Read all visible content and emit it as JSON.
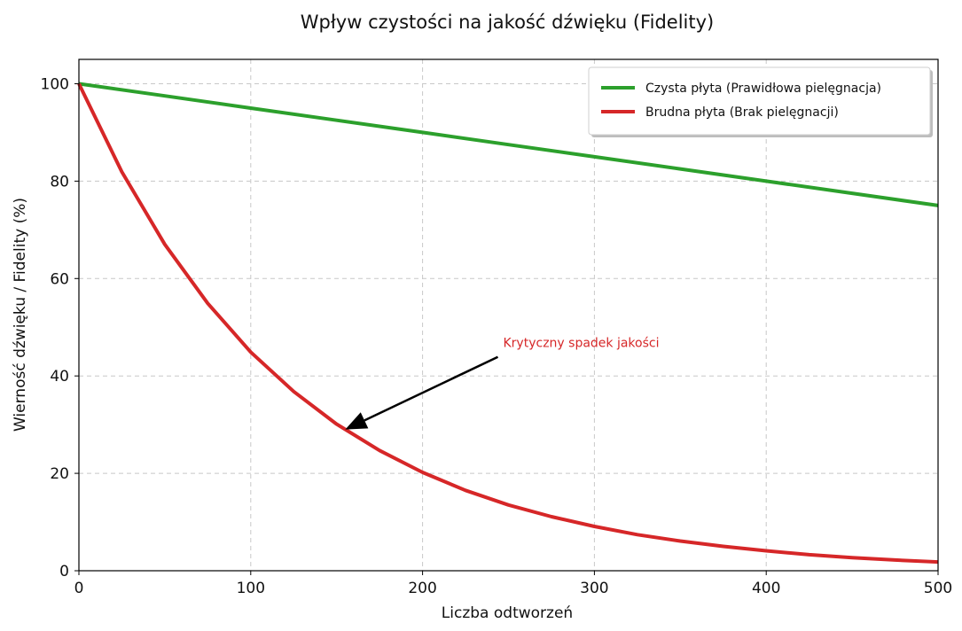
{
  "chart_data": {
    "type": "line",
    "title": "Wpływ czystości na jakość dźwięku (Fidelity)",
    "xlabel": "Liczba odtworzeń",
    "ylabel": "Wierność dźwięku / Fidelity (%)",
    "xlim": [
      0,
      500
    ],
    "ylim": [
      0,
      105
    ],
    "xticks": [
      0,
      100,
      200,
      300,
      400,
      500
    ],
    "yticks": [
      0,
      20,
      40,
      60,
      80,
      100
    ],
    "grid": true,
    "legend_position": "top-right",
    "series": [
      {
        "name": "Czysta płyta (Prawidłowa pielęgnacja)",
        "color": "#2ca02c",
        "x": [
          0,
          50,
          100,
          150,
          200,
          250,
          300,
          350,
          400,
          450,
          500
        ],
        "y": [
          100,
          97.5,
          95,
          92.5,
          90,
          87.5,
          85,
          82.5,
          80,
          77.5,
          75
        ]
      },
      {
        "name": "Brudna płyta (Brak pielęgnacji)",
        "color": "#d62728",
        "x": [
          0,
          25,
          50,
          75,
          100,
          125,
          150,
          175,
          200,
          225,
          250,
          275,
          300,
          325,
          350,
          375,
          400,
          425,
          450,
          475,
          500
        ],
        "y": [
          100,
          81.9,
          67.0,
          54.9,
          44.9,
          36.8,
          30.1,
          24.7,
          20.2,
          16.5,
          13.5,
          11.1,
          9.1,
          7.4,
          6.1,
          5.0,
          4.1,
          3.3,
          2.7,
          2.2,
          1.8
        ]
      }
    ],
    "annotations": [
      {
        "text": "Krytyczny spadek jakości",
        "color": "#d62728",
        "point": [
          155,
          29
        ],
        "text_at": [
          250,
          45
        ]
      }
    ]
  }
}
